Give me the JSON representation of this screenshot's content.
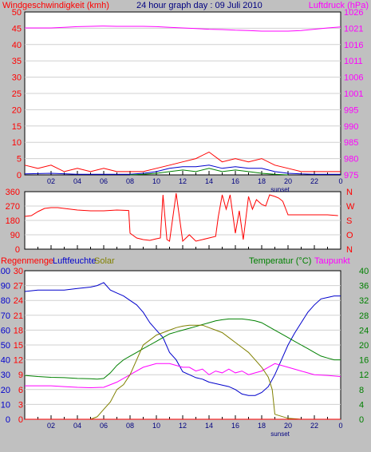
{
  "header": {
    "wind_label": "Windgeschwindigkeit (kmh)",
    "title": "24 hour graph day : 09 Juli 2010",
    "pressure_label": "Luftdruck (hPa)"
  },
  "legend3": {
    "rain": "Regenmenge",
    "humidity": "Luftfeuchte",
    "solar": "Solar",
    "temperature": "Temperatur (°C)",
    "dewpoint": "Taupunkt"
  },
  "x_ticks": [
    "02",
    "04",
    "06",
    "08",
    "10",
    "12",
    "14",
    "16",
    "18",
    "20",
    "22",
    "0"
  ],
  "sunset_label": "sunset",
  "colors": {
    "wind": "#ff0000",
    "gust_blue": "#0000cc",
    "gust_green": "#008000",
    "pressure": "#ff00ff",
    "direction": "#ff0000",
    "humidity": "#0000cc",
    "temperature": "#008000",
    "dewpoint": "#ff00ff",
    "solar": "#808000",
    "rain": "#ff0000"
  },
  "chart_data": [
    {
      "type": "line",
      "y_left_ticks": [
        "0",
        "5",
        "10",
        "15",
        "20",
        "25",
        "30",
        "35",
        "40",
        "45",
        "50"
      ],
      "y_right_ticks": [
        "975",
        "980",
        "985",
        "990",
        "995",
        "1001",
        "1006",
        "1011",
        "1016",
        "1021",
        "1026"
      ],
      "ylim_left": [
        0,
        50
      ],
      "ylim_right": [
        975,
        1026
      ],
      "series": [
        {
          "x": [
            0,
            1,
            2,
            3,
            4,
            5,
            6,
            7,
            8,
            9,
            10,
            11,
            12,
            13,
            14,
            15,
            16,
            17,
            18,
            19,
            20,
            21,
            22,
            23,
            24
          ],
          "values": [
            1021,
            1021,
            1021,
            1021.2,
            1021.4,
            1021.5,
            1021.6,
            1021.5,
            1021.5,
            1021.5,
            1021.4,
            1021.2,
            1021,
            1020.8,
            1020.6,
            1020.5,
            1020.3,
            1020.2,
            1020,
            1020,
            1020,
            1020.2,
            1020.6,
            1021,
            1021.3
          ]
        },
        {
          "x": [
            0,
            1,
            2,
            3,
            4,
            5,
            6,
            7,
            8,
            9,
            10,
            11,
            12,
            13,
            14,
            15,
            16,
            17,
            18,
            19,
            20,
            21,
            22,
            23,
            24
          ],
          "values": [
            3,
            2,
            3,
            1,
            2,
            1,
            2,
            1,
            1,
            1,
            2,
            3,
            4,
            5,
            7,
            4,
            5,
            4,
            5,
            3,
            2,
            1,
            1,
            1,
            1
          ]
        },
        {
          "x": [
            0,
            2,
            4,
            6,
            8,
            9,
            10,
            11,
            12,
            13,
            14,
            15,
            16,
            17,
            18,
            19,
            20,
            21,
            22,
            23,
            24
          ],
          "values": [
            0.3,
            0.5,
            0.2,
            0.2,
            0.2,
            0.5,
            1,
            2,
            2.5,
            2.5,
            3,
            2,
            2.5,
            2,
            2,
            1,
            0.5,
            0.3,
            0.2,
            0.2,
            0.2
          ]
        },
        {
          "x": [
            8,
            9,
            10,
            11,
            12,
            13,
            14,
            15,
            16,
            17,
            18,
            19,
            20
          ],
          "values": [
            0,
            0.2,
            0.5,
            1,
            1.5,
            1,
            2,
            1,
            1.5,
            1,
            0.5,
            0.2,
            0
          ]
        }
      ]
    },
    {
      "type": "line",
      "y_left_ticks": [
        "360",
        "270",
        "180",
        "90",
        "0"
      ],
      "y_right_ticks": [
        "N",
        "W",
        "S",
        "O",
        "N"
      ],
      "ylim": [
        0,
        360
      ],
      "series": [
        {
          "x": [
            0,
            0.5,
            1,
            1.5,
            2,
            2.5,
            3,
            4,
            5,
            6,
            7,
            7.9,
            8,
            8.5,
            9,
            9.5,
            10,
            10.3,
            10.5,
            10.8,
            11,
            11.5,
            12,
            12.5,
            13,
            13.5,
            14,
            14.5,
            14.7,
            15,
            15.3,
            15.6,
            16,
            16.3,
            16.6,
            17,
            17.3,
            17.6,
            18,
            18.3,
            18.6,
            19,
            19.3,
            19.6,
            20,
            21,
            22,
            23,
            23.8
          ],
          "values": [
            205,
            210,
            235,
            255,
            260,
            260,
            255,
            245,
            240,
            240,
            245,
            242,
            100,
            70,
            60,
            55,
            65,
            70,
            340,
            60,
            50,
            350,
            50,
            90,
            50,
            60,
            70,
            80,
            200,
            340,
            250,
            340,
            100,
            240,
            60,
            330,
            250,
            310,
            280,
            270,
            340,
            330,
            320,
            300,
            215,
            215,
            215,
            215,
            210
          ]
        }
      ]
    },
    {
      "type": "line",
      "y_left1_ticks": [
        "0",
        "10",
        "20",
        "30",
        "40",
        "50",
        "60",
        "70",
        "80",
        "90",
        "100"
      ],
      "y_left2_ticks": [
        "0",
        "3",
        "6",
        "9",
        "12",
        "15",
        "18",
        "21",
        "24",
        "27",
        "30"
      ],
      "y_right_ticks": [
        "0",
        "4",
        "8",
        "12",
        "16",
        "20",
        "24",
        "28",
        "32",
        "36",
        "40"
      ],
      "series": [
        {
          "x": [
            0,
            1,
            2,
            3,
            4,
            5,
            5.5,
            6,
            6.5,
            7,
            7.5,
            8,
            8.5,
            9,
            9.5,
            10,
            10.5,
            11,
            11.5,
            12,
            12.5,
            13,
            13.5,
            14,
            14.5,
            15,
            15.5,
            16,
            16.5,
            17,
            17.5,
            18,
            18.5,
            19,
            19.5,
            20,
            20.5,
            21,
            21.5,
            22,
            22.5,
            23,
            23.5,
            24
          ],
          "values": [
            86,
            87,
            87,
            87,
            88,
            89,
            90,
            92,
            87,
            85,
            83,
            80,
            77,
            72,
            65,
            60,
            55,
            45,
            40,
            32,
            30,
            28,
            27,
            25,
            24,
            23,
            22,
            20,
            17,
            16,
            16,
            18,
            22,
            30,
            40,
            50,
            58,
            65,
            72,
            77,
            81,
            82,
            83,
            83
          ]
        },
        {
          "x": [
            0,
            1,
            2,
            3,
            4,
            5,
            5.5,
            6,
            6.5,
            7,
            7.5,
            8,
            8.5,
            9,
            9.5,
            10,
            10.5,
            11,
            11.5,
            12,
            12.5,
            13,
            13.5,
            14,
            14.5,
            15,
            15.5,
            16,
            16.5,
            17,
            17.5,
            18,
            18.5,
            19,
            19.5,
            20,
            20.5,
            21,
            21.5,
            22,
            22.5,
            23,
            23.5,
            24
          ],
          "values": [
            11.8,
            11.5,
            11.3,
            11.2,
            11,
            10.9,
            10.8,
            11,
            12.5,
            14.5,
            16,
            17,
            18,
            19,
            20,
            21,
            22,
            23,
            23.5,
            24,
            24.5,
            25,
            25.5,
            26,
            26.5,
            26.8,
            27,
            27,
            27,
            26.8,
            26.5,
            26,
            25,
            24,
            23,
            22,
            21,
            20,
            19,
            18,
            17,
            16.5,
            16,
            16
          ]
        },
        {
          "x": [
            0,
            1,
            2,
            3,
            4,
            5,
            6,
            7,
            8,
            9,
            10,
            11,
            12,
            12.5,
            13,
            13.5,
            14,
            14.5,
            15,
            15.5,
            16,
            16.5,
            17,
            17.5,
            18,
            18.5,
            19,
            20,
            21,
            22,
            23,
            24
          ],
          "values": [
            9,
            9,
            9,
            8.8,
            8.6,
            8.5,
            8.6,
            10,
            12,
            14,
            15,
            15,
            14,
            14,
            13,
            13.5,
            12,
            13,
            12.5,
            13.5,
            12.5,
            13,
            12,
            12.5,
            13,
            14,
            15,
            14,
            13,
            12,
            11.8,
            11.5
          ]
        },
        {
          "x": [
            0,
            5,
            5.5,
            6,
            6.5,
            7,
            7.5,
            8,
            8.5,
            9,
            9.5,
            10,
            10.5,
            11,
            11.5,
            12,
            12.5,
            13,
            13.5,
            14,
            14.5,
            15,
            15.5,
            16,
            16.5,
            17,
            17.5,
            18,
            18.5,
            18.8,
            19,
            20,
            21,
            24
          ],
          "values": [
            0,
            0,
            0.5,
            2,
            3.5,
            6,
            7,
            9,
            12,
            15,
            16,
            17,
            17.5,
            18,
            18.5,
            18.8,
            19,
            19,
            19,
            18.5,
            18,
            17.5,
            16.5,
            15.5,
            14.5,
            13.5,
            12,
            10.5,
            8.5,
            6,
            1,
            0.2,
            0,
            0
          ]
        },
        {
          "x": [
            0,
            24
          ],
          "values": [
            0,
            0
          ]
        }
      ]
    }
  ]
}
